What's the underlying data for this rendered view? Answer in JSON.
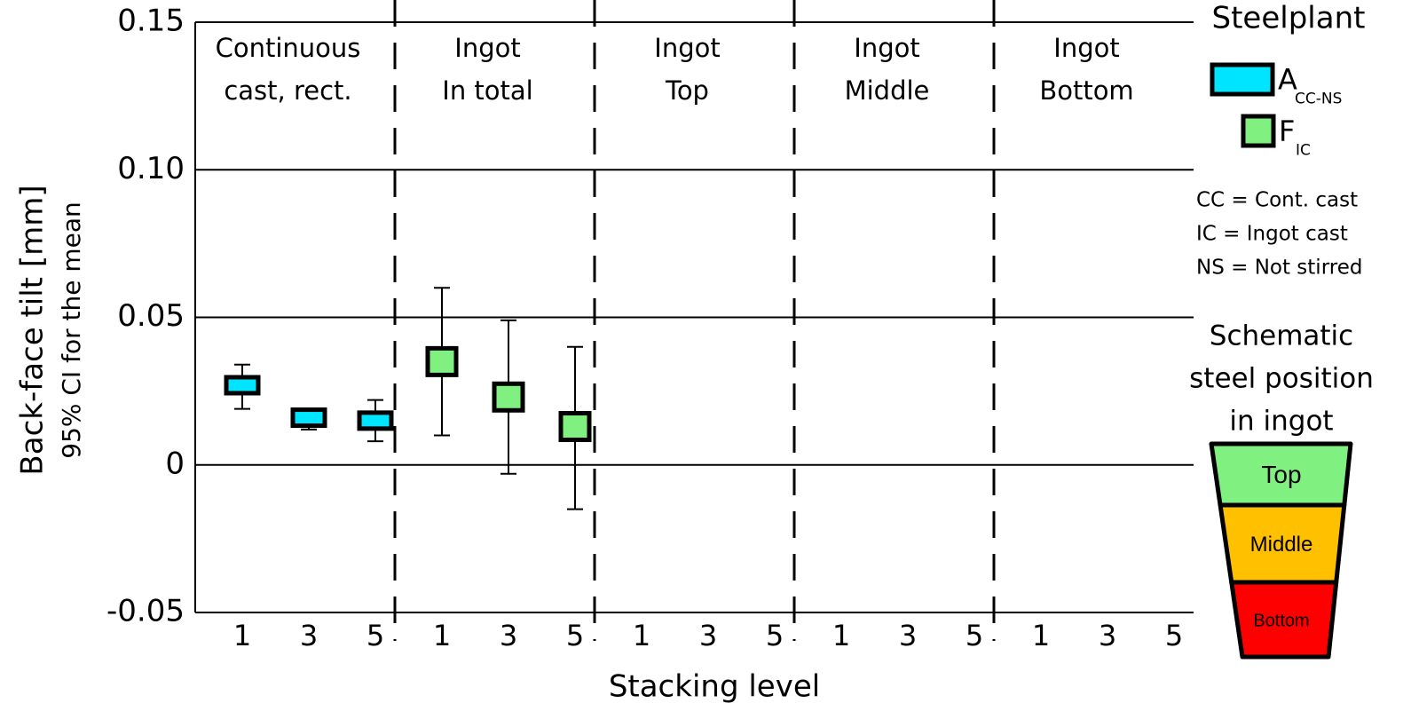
{
  "chart_data": {
    "type": "errorbar",
    "ylabel": "Back-face tilt [mm]",
    "ylabel2": "95% CI for the mean",
    "xlabel": "Stacking level",
    "ylim": [
      -0.05,
      0.15
    ],
    "yticks": [
      -0.05,
      0,
      0.05,
      {
        "value": 0.1,
        "label": "0.10"
      },
      0.15
    ],
    "grid": true,
    "panels": [
      {
        "label": [
          "Continuous",
          "cast, rect."
        ]
      },
      {
        "label": [
          "Ingot",
          "In total"
        ]
      },
      {
        "label": [
          "Ingot",
          "Top"
        ]
      },
      {
        "label": [
          "Ingot",
          "Middle"
        ]
      },
      {
        "label": [
          "Ingot",
          "Bottom"
        ]
      }
    ],
    "categories": [
      "1",
      "3",
      "5",
      "1",
      "3",
      "5",
      "1",
      "3",
      "5",
      "1",
      "3",
      "5",
      "1",
      "3",
      "5"
    ],
    "legend_title": "Steelplant",
    "series": [
      {
        "name": "A",
        "name_sub": "CC-NS",
        "color": "#00e5ff",
        "values": [
          0.027,
          0.016,
          0.015,
          null,
          null,
          null,
          null,
          null,
          null,
          null,
          null,
          null,
          null,
          null,
          null
        ],
        "lower": [
          0.019,
          0.012,
          0.008,
          null,
          null,
          null,
          null,
          null,
          null,
          null,
          null,
          null,
          null,
          null,
          null
        ],
        "upper": [
          0.034,
          0.019,
          0.022,
          null,
          null,
          null,
          null,
          null,
          null,
          null,
          null,
          null,
          null,
          null,
          null
        ]
      },
      {
        "name": "F",
        "name_sub": "IC",
        "color": "#80f080",
        "values": [
          null,
          null,
          null,
          0.035,
          0.023,
          0.013,
          null,
          null,
          null,
          null,
          null,
          null,
          null,
          null,
          null
        ],
        "lower": [
          null,
          null,
          null,
          0.01,
          -0.003,
          -0.015,
          null,
          null,
          null,
          null,
          null,
          null,
          null,
          null,
          null
        ],
        "upper": [
          null,
          null,
          null,
          0.06,
          0.049,
          0.04,
          null,
          null,
          null,
          null,
          null,
          null,
          null,
          null,
          null
        ]
      }
    ],
    "notes": [
      "CC = Cont. cast",
      "IC  = Ingot cast",
      "NS = Not stirred"
    ],
    "schematic": {
      "title": [
        "Schematic",
        "steel position",
        "in ingot"
      ],
      "sections": [
        {
          "label": "Top",
          "color": "#80f080"
        },
        {
          "label": "Middle",
          "color": "#ffc000"
        },
        {
          "label": "Bottom",
          "color": "#ff0000"
        }
      ]
    }
  }
}
